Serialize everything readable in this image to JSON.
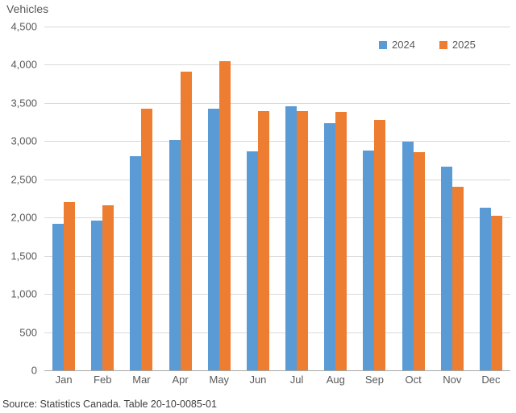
{
  "page": {
    "title": "Vehicles",
    "source": "Source: Statistics Canada. Table 20-10-0085-01"
  },
  "chart_data": {
    "type": "bar",
    "title": "Vehicles",
    "categories": [
      "Jan",
      "Feb",
      "Mar",
      "Apr",
      "May",
      "Jun",
      "Jul",
      "Aug",
      "Sep",
      "Oct",
      "Nov",
      "Dec"
    ],
    "series": [
      {
        "name": "2024",
        "color": "#5B9BD5",
        "values": [
          1920,
          1960,
          2800,
          3010,
          3430,
          2870,
          3460,
          3240,
          2880,
          2990,
          2670,
          2130
        ]
      },
      {
        "name": "2025",
        "color": "#ED7D31",
        "values": [
          2200,
          2160,
          3420,
          3910,
          4050,
          3390,
          3390,
          3380,
          3280,
          2860,
          2400,
          2020
        ]
      }
    ],
    "ylim": [
      0,
      4500
    ],
    "yticks": [
      {
        "value": 0,
        "label": "0"
      },
      {
        "value": 500,
        "label": "500"
      },
      {
        "value": 1000,
        "label": "1,000"
      },
      {
        "value": 1500,
        "label": "1,500"
      },
      {
        "value": 2000,
        "label": "2,000"
      },
      {
        "value": 2500,
        "label": "2,500"
      },
      {
        "value": 3000,
        "label": "3,000"
      },
      {
        "value": 3500,
        "label": "3,500"
      },
      {
        "value": 4000,
        "label": "4,000"
      },
      {
        "value": 4500,
        "label": "4,500"
      }
    ],
    "grid": true,
    "legend_position": "top-right",
    "source_note": "Source: Statistics Canada. Table 20-10-0085-01"
  }
}
